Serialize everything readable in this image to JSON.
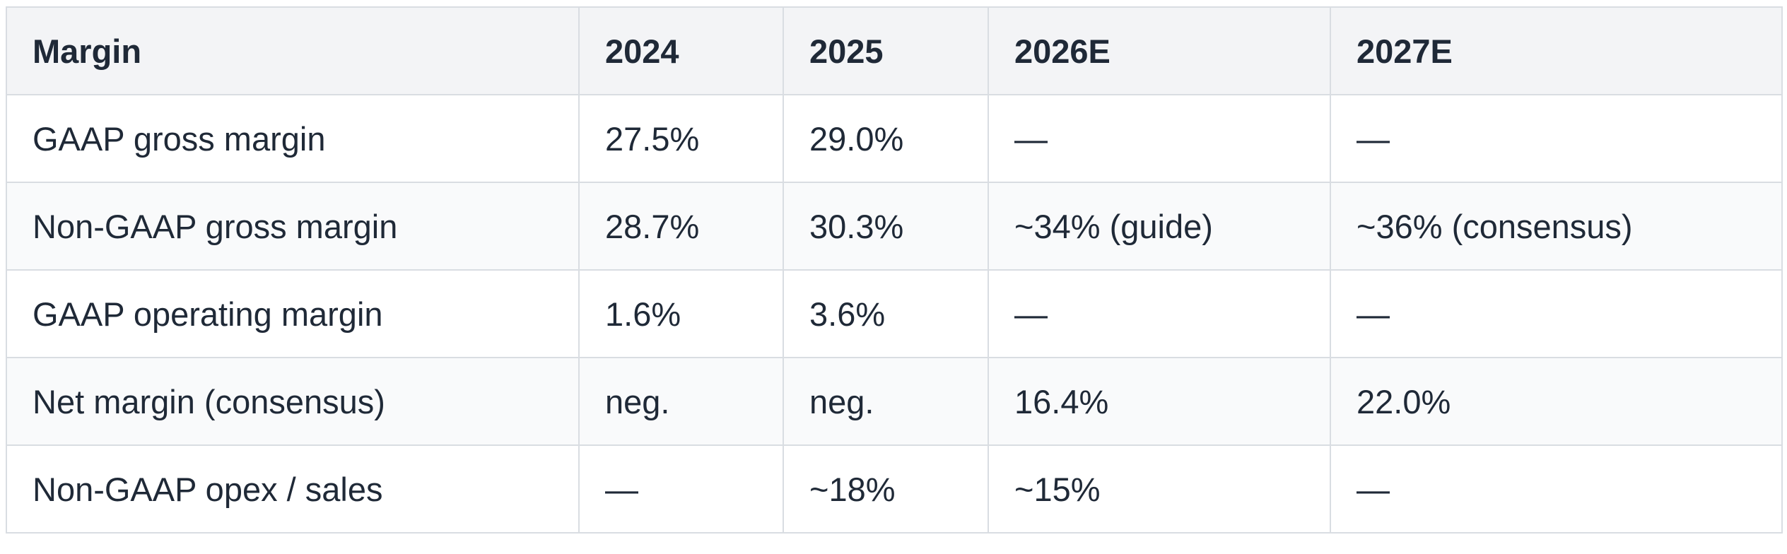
{
  "table": {
    "headers": [
      "Margin",
      "2024",
      "2025",
      "2026E",
      "2027E"
    ],
    "rows": [
      [
        "GAAP gross margin",
        "27.5%",
        "29.0%",
        "—",
        "—"
      ],
      [
        "Non-GAAP gross margin",
        "28.7%",
        "30.3%",
        "~34% (guide)",
        "~36% (consensus)"
      ],
      [
        "GAAP operating margin",
        "1.6%",
        "3.6%",
        "—",
        "—"
      ],
      [
        "Net margin (consensus)",
        "neg.",
        "neg.",
        "16.4%",
        "22.0%"
      ],
      [
        "Non-GAAP opex / sales",
        "—",
        "~18%",
        "~15%",
        "—"
      ]
    ]
  }
}
